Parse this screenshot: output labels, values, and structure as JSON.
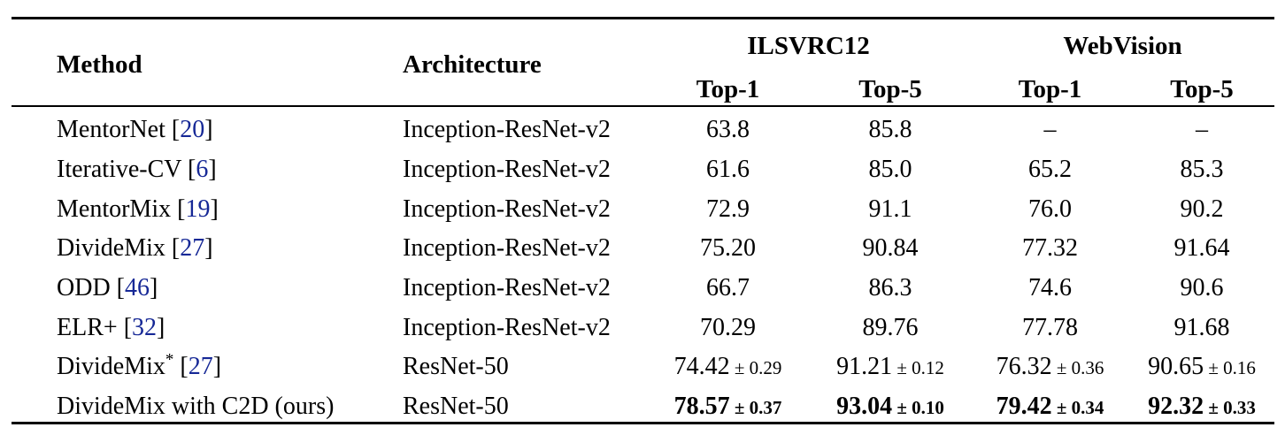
{
  "table": {
    "headers": {
      "method": "Method",
      "architecture": "Architecture",
      "group_ilsvrc": "ILSVRC12",
      "group_webvision": "WebVision",
      "top1": "Top-1",
      "top5": "Top-5"
    },
    "cite_open": "[",
    "cite_close": "]",
    "pm_symbol": "±",
    "rows": [
      {
        "method": "MentorNet",
        "cite": "20",
        "arch": "Inception-ResNet-v2",
        "cells": [
          {
            "main": "63.8"
          },
          {
            "main": "85.8"
          },
          {
            "main": "–"
          },
          {
            "main": "–"
          }
        ]
      },
      {
        "method": "Iterative-CV",
        "cite": "6",
        "arch": "Inception-ResNet-v2",
        "cells": [
          {
            "main": "61.6"
          },
          {
            "main": "85.0"
          },
          {
            "main": "65.2"
          },
          {
            "main": "85.3"
          }
        ]
      },
      {
        "method": "MentorMix",
        "cite": "19",
        "arch": "Inception-ResNet-v2",
        "cells": [
          {
            "main": "72.9"
          },
          {
            "main": "91.1"
          },
          {
            "main": "76.0"
          },
          {
            "main": "90.2"
          }
        ]
      },
      {
        "method": "DivideMix",
        "cite": "27",
        "arch": "Inception-ResNet-v2",
        "cells": [
          {
            "main": "75.20"
          },
          {
            "main": "90.84"
          },
          {
            "main": "77.32"
          },
          {
            "main": "91.64"
          }
        ]
      },
      {
        "method": "ODD",
        "cite": "46",
        "arch": "Inception-ResNet-v2",
        "cells": [
          {
            "main": "66.7"
          },
          {
            "main": "86.3"
          },
          {
            "main": "74.6"
          },
          {
            "main": "90.6"
          }
        ]
      },
      {
        "method": "ELR+",
        "cite": "32",
        "arch": "Inception-ResNet-v2",
        "cells": [
          {
            "main": "70.29"
          },
          {
            "main": "89.76"
          },
          {
            "main": "77.78"
          },
          {
            "main": "91.68"
          }
        ]
      },
      {
        "method": "DivideMix",
        "sup": "*",
        "cite": "27",
        "arch": "ResNet-50",
        "cells": [
          {
            "main": "74.42",
            "pm": "0.29"
          },
          {
            "main": "91.21",
            "pm": "0.12"
          },
          {
            "main": "76.32",
            "pm": "0.36"
          },
          {
            "main": "90.65",
            "pm": "0.16"
          }
        ]
      },
      {
        "method": "DivideMix with C2D (ours)",
        "arch": "ResNet-50",
        "bold": true,
        "cells": [
          {
            "main": "78.57",
            "pm": "0.37"
          },
          {
            "main": "93.04",
            "pm": "0.10"
          },
          {
            "main": "79.42",
            "pm": "0.34"
          },
          {
            "main": "92.32",
            "pm": "0.33"
          }
        ]
      }
    ]
  },
  "colors": {
    "citation": "#162896",
    "text": "#000000",
    "rule": "#000000"
  }
}
